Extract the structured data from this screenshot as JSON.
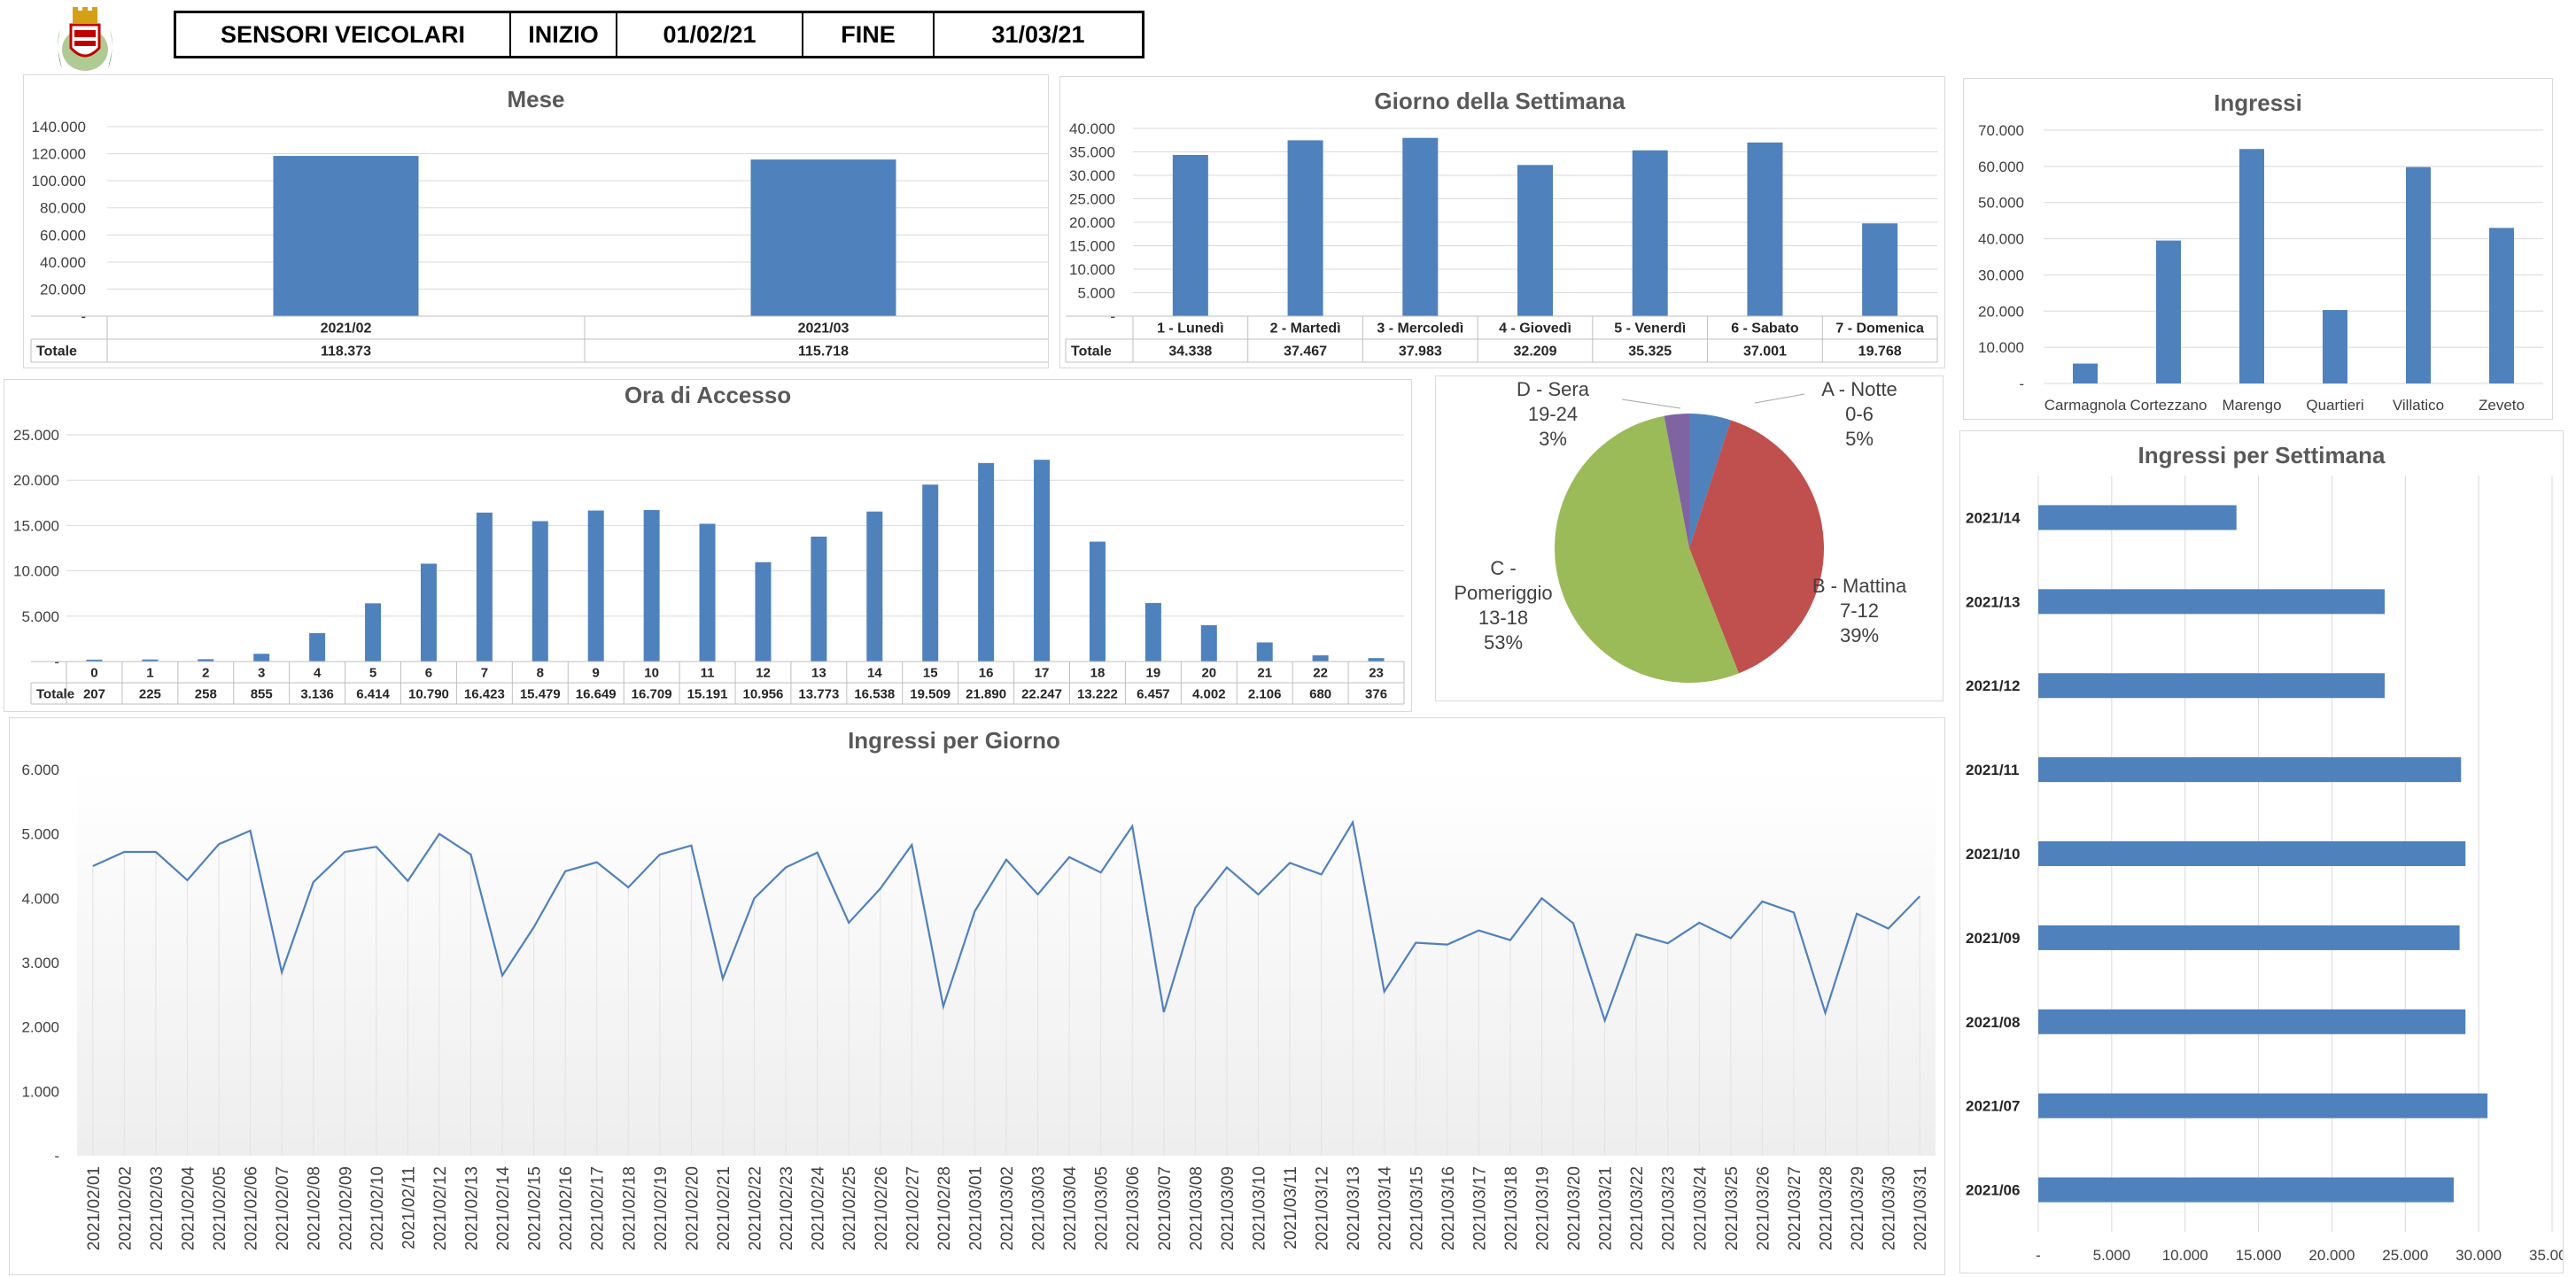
{
  "header": {
    "title_label": "SENSORI VEICOLARI",
    "start_label": "INIZIO",
    "start_date": "01/02/21",
    "end_label": "FINE",
    "end_date": "31/03/21"
  },
  "logo": {
    "icon": "municipal-crest-icon",
    "colors": {
      "gold": "#d4a017",
      "red": "#c00000",
      "green": "#4e8a2e"
    }
  },
  "colors": {
    "bar": "#4f81bd",
    "line": "#4f81bd",
    "grid": "#d9d9d9",
    "pie_a": "#4f81bd",
    "pie_b": "#c0504d",
    "pie_c": "#9bbb59",
    "pie_d": "#8064a2"
  },
  "chart_data": [
    {
      "id": "mese",
      "type": "bar",
      "title": "Mese",
      "categories": [
        "2021/02",
        "2021/03"
      ],
      "values": [
        118373,
        115718
      ],
      "table_row_label": "Totale",
      "table_values": [
        "118.373",
        "115.718"
      ],
      "ylim": [
        0,
        140000
      ],
      "yticks": [
        "-",
        "20.000",
        "40.000",
        "60.000",
        "80.000",
        "100.000",
        "120.000",
        "140.000"
      ],
      "grid": true
    },
    {
      "id": "giorno",
      "type": "bar",
      "title": "Giorno della Settimana",
      "categories": [
        "1 - Lunedì",
        "2 - Martedì",
        "3 - Mercoledì",
        "4 - Giovedì",
        "5 - Venerdì",
        "6 - Sabato",
        "7 - Domenica"
      ],
      "values": [
        34338,
        37467,
        37983,
        32209,
        35325,
        37001,
        19768
      ],
      "table_row_label": "Totale",
      "table_values": [
        "34.338",
        "37.467",
        "37.983",
        "32.209",
        "35.325",
        "37.001",
        "19.768"
      ],
      "ylim": [
        0,
        40000
      ],
      "yticks": [
        "-",
        "5.000",
        "10.000",
        "15.000",
        "20.000",
        "25.000",
        "30.000",
        "35.000",
        "40.000"
      ],
      "grid": true
    },
    {
      "id": "ingressi",
      "type": "bar",
      "title": "Ingressi",
      "categories": [
        "Carmagnola",
        "Cortezzano",
        "Marengo",
        "Quartieri",
        "Villatico",
        "Zeveto"
      ],
      "values": [
        5500,
        39500,
        64800,
        20300,
        59800,
        43000
      ],
      "ylim": [
        0,
        70000
      ],
      "yticks": [
        "-",
        "10.000",
        "20.000",
        "30.000",
        "40.000",
        "50.000",
        "60.000",
        "70.000"
      ],
      "grid": true
    },
    {
      "id": "ora",
      "type": "bar",
      "title": "Ora di Accesso",
      "categories": [
        "0",
        "1",
        "2",
        "3",
        "4",
        "5",
        "6",
        "7",
        "8",
        "9",
        "10",
        "11",
        "12",
        "13",
        "14",
        "15",
        "16",
        "17",
        "18",
        "19",
        "20",
        "21",
        "22",
        "23"
      ],
      "values": [
        207,
        225,
        258,
        855,
        3136,
        6414,
        10790,
        16423,
        15479,
        16649,
        16709,
        15191,
        10956,
        13773,
        16538,
        19509,
        21890,
        22247,
        13222,
        6457,
        4002,
        2106,
        680,
        376
      ],
      "table_row_label": "Totale",
      "table_values": [
        "207",
        "225",
        "258",
        "855",
        "3.136",
        "6.414",
        "10.790",
        "16.423",
        "15.479",
        "16.649",
        "16.709",
        "15.191",
        "10.956",
        "13.773",
        "16.538",
        "19.509",
        "21.890",
        "22.247",
        "13.222",
        "6.457",
        "4.002",
        "2.106",
        "680",
        "376"
      ],
      "ylim": [
        0,
        25000
      ],
      "yticks": [
        "-",
        "5.000",
        "10.000",
        "15.000",
        "20.000",
        "25.000"
      ],
      "grid": true
    },
    {
      "id": "fasce",
      "type": "pie",
      "title": "",
      "slices": [
        {
          "name": "A - Notte",
          "range": "0-6",
          "pct": "5%",
          "value": 5
        },
        {
          "name": "B - Mattina",
          "range": "7-12",
          "pct": "39%",
          "value": 39
        },
        {
          "name": "C - Pomeriggio",
          "range": "13-18",
          "pct": "53%",
          "value": 53
        },
        {
          "name": "D - Sera",
          "range": "19-24",
          "pct": "3%",
          "value": 3
        }
      ]
    },
    {
      "id": "settimana",
      "type": "bar",
      "orientation": "horizontal",
      "title": "Ingressi per Settimana",
      "categories": [
        "2021/14",
        "2021/13",
        "2021/12",
        "2021/11",
        "2021/10",
        "2021/09",
        "2021/08",
        "2021/07",
        "2021/06"
      ],
      "values": [
        13500,
        23600,
        23600,
        28800,
        29100,
        28700,
        29100,
        30600,
        28300
      ],
      "xlim": [
        0,
        35000
      ],
      "xticks": [
        "-",
        "5.000",
        "10.000",
        "15.000",
        "20.000",
        "25.000",
        "30.000",
        "35.000"
      ],
      "grid": true
    },
    {
      "id": "giornaliero",
      "type": "line",
      "title": "Ingressi per Giorno",
      "x": [
        "2021/02/01",
        "2021/02/02",
        "2021/02/03",
        "2021/02/04",
        "2021/02/05",
        "2021/02/06",
        "2021/02/07",
        "2021/02/08",
        "2021/02/09",
        "2021/02/10",
        "2021/02/11",
        "2021/02/12",
        "2021/02/13",
        "2021/02/14",
        "2021/02/15",
        "2021/02/16",
        "2021/02/17",
        "2021/02/18",
        "2021/02/19",
        "2021/02/20",
        "2021/02/21",
        "2021/02/22",
        "2021/02/23",
        "2021/02/24",
        "2021/02/25",
        "2021/02/26",
        "2021/02/27",
        "2021/02/28",
        "2021/03/01",
        "2021/03/02",
        "2021/03/03",
        "2021/03/04",
        "2021/03/05",
        "2021/03/06",
        "2021/03/07",
        "2021/03/08",
        "2021/03/09",
        "2021/03/10",
        "2021/03/11",
        "2021/03/12",
        "2021/03/13",
        "2021/03/14",
        "2021/03/15",
        "2021/03/16",
        "2021/03/17",
        "2021/03/18",
        "2021/03/19",
        "2021/03/20",
        "2021/03/21",
        "2021/03/22",
        "2021/03/23",
        "2021/03/24",
        "2021/03/25",
        "2021/03/26",
        "2021/03/27",
        "2021/03/28",
        "2021/03/29",
        "2021/03/30",
        "2021/03/31"
      ],
      "values": [
        4500,
        4720,
        4720,
        4280,
        4840,
        5050,
        2850,
        4250,
        4720,
        4800,
        4270,
        5000,
        4680,
        2800,
        3550,
        4420,
        4560,
        4170,
        4680,
        4820,
        2750,
        4000,
        4480,
        4710,
        3620,
        4150,
        4830,
        2320,
        3800,
        4600,
        4060,
        4640,
        4400,
        5120,
        2230,
        3850,
        4480,
        4060,
        4550,
        4370,
        5180,
        2550,
        3310,
        3280,
        3500,
        3350,
        4000,
        3610,
        2100,
        3440,
        3300,
        3620,
        3380,
        3950,
        3780,
        2220,
        3760,
        3530,
        4030
      ],
      "ylim": [
        0,
        6000
      ],
      "yticks": [
        "-",
        "1.000",
        "2.000",
        "3.000",
        "4.000",
        "5.000",
        "6.000"
      ],
      "grid": true
    }
  ]
}
